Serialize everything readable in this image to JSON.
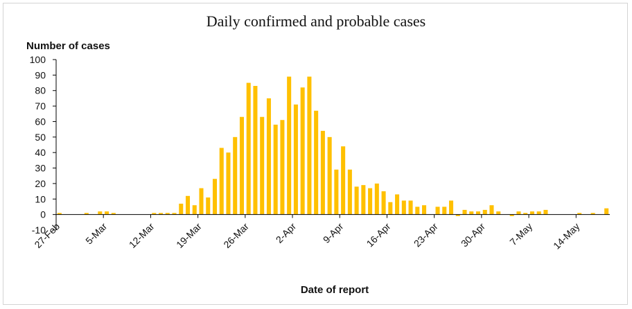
{
  "chart_data": {
    "type": "bar",
    "title": "Daily confirmed and probable cases",
    "ylabel": "Number of cases",
    "xlabel": "Date of report",
    "ylim": [
      -10,
      100
    ],
    "yticks": [
      -10,
      0,
      10,
      20,
      30,
      40,
      50,
      60,
      70,
      80,
      90,
      100
    ],
    "start_date": "27-Feb",
    "xtick_labels": [
      "27-Feb",
      "5-Mar",
      "12-Mar",
      "19-Mar",
      "26-Mar",
      "2-Apr",
      "9-Apr",
      "16-Apr",
      "23-Apr",
      "30-Apr",
      "7-May",
      "14-May"
    ],
    "bar_color": "#FFC000",
    "series": [
      {
        "values": [
          1,
          0,
          0,
          0,
          1,
          0,
          2,
          2,
          1,
          0,
          0,
          0,
          0,
          0,
          1,
          1,
          1,
          1,
          7,
          12,
          6,
          17,
          11,
          23,
          43,
          40,
          50,
          63,
          85,
          83,
          63,
          75,
          58,
          61,
          89,
          71,
          82,
          89,
          67,
          54,
          50,
          29,
          44,
          29,
          18,
          19,
          17,
          20,
          15,
          8,
          13,
          9,
          9,
          5,
          6,
          0,
          5,
          5,
          9,
          -1,
          3,
          2,
          2,
          3,
          6,
          2,
          0,
          -1,
          2,
          1,
          2,
          2,
          3,
          0,
          0,
          0,
          0,
          1,
          0,
          1,
          0,
          4
        ]
      }
    ]
  }
}
